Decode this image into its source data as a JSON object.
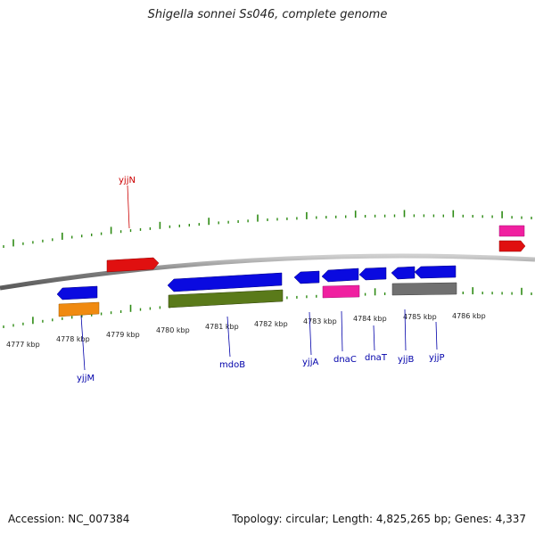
{
  "title": "Shigella sonnei Ss046, complete genome",
  "footer": {
    "accession": "Accession: NC_007384",
    "topology": "Topology: circular; Length: 4,825,265 bp; Genes: 4,337"
  },
  "colors": {
    "backbone": "#8a8a8a",
    "tick": "#2e8b14",
    "forward_label": "#cc0000",
    "reverse_label": "#0000aa",
    "blue": "#0a0ae0",
    "red": "#e01010",
    "pink": "#f020a0",
    "orange": "#f08a10",
    "olive": "#5a7a1a",
    "gray": "#707070"
  },
  "scale": {
    "ticks_kbp": [
      "4777 kbp",
      "4778 kbp",
      "4779 kbp",
      "4780 kbp",
      "4781 kbp",
      "4782 kbp",
      "4783 kbp",
      "4784 kbp",
      "4785 kbp",
      "4786 kbp"
    ]
  },
  "genes": {
    "labeled": [
      {
        "name": "yjjN",
        "strand": "forward"
      },
      {
        "name": "yjjM",
        "strand": "reverse"
      },
      {
        "name": "mdoB",
        "strand": "reverse"
      },
      {
        "name": "yjjA",
        "strand": "reverse"
      },
      {
        "name": "dnaC",
        "strand": "reverse"
      },
      {
        "name": "dnaT",
        "strand": "reverse"
      },
      {
        "name": "yjjB",
        "strand": "reverse"
      },
      {
        "name": "yjjP",
        "strand": "reverse"
      }
    ]
  }
}
